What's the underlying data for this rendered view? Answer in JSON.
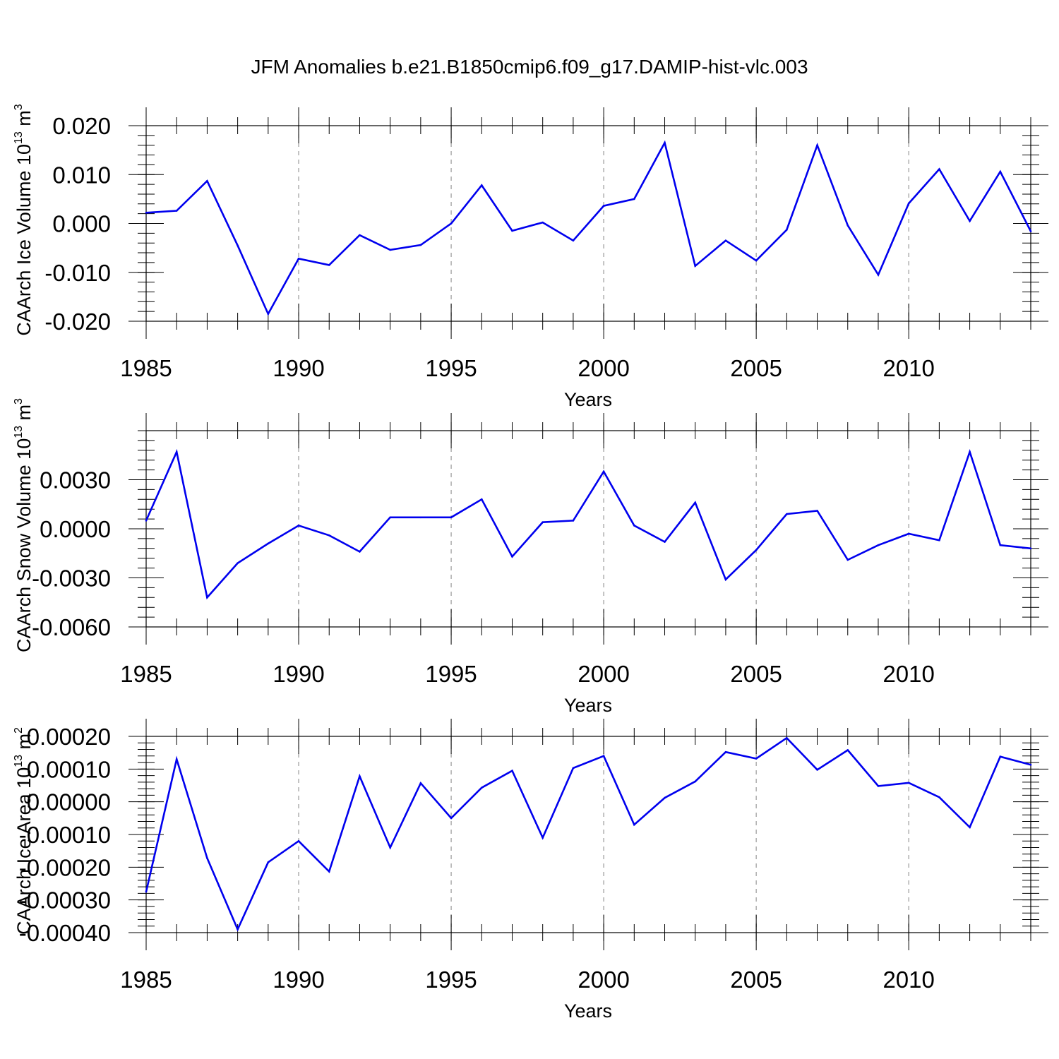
{
  "title": "JFM Anomalies b.e21.B1850cmip6.f09_g17.DAMIP-hist-vlc.003",
  "colors": {
    "series": "#0000ee",
    "grid": "#999999",
    "axis": "#000000"
  },
  "chart_data": [
    {
      "type": "line",
      "xlabel": "Years",
      "ylabel_base": "CAArch Ice Volume 10",
      "ylabel_exp": "13",
      "ylabel_unit": " m",
      "ylabel_unit_exp": "3",
      "xlim": [
        1985,
        2014
      ],
      "ylim": [
        -0.02,
        0.02
      ],
      "xticks": [
        1985,
        1990,
        1995,
        2000,
        2005,
        2010
      ],
      "xtick_labels": [
        "1985",
        "1990",
        "1995",
        "2000",
        "2005",
        "2010"
      ],
      "yticks": [
        -0.02,
        -0.01,
        0.0,
        0.01,
        0.02
      ],
      "ytick_labels": [
        "-0.020",
        "-0.010",
        "0.000",
        "0.010",
        "0.020"
      ],
      "x_minor_step": 1,
      "y_minor_step": 0.002,
      "grid_x": [
        1990,
        1995,
        2000,
        2005,
        2010
      ],
      "series": [
        {
          "name": "CAArch Ice Volume",
          "x": [
            1985,
            1986,
            1987,
            1988,
            1989,
            1990,
            1991,
            1992,
            1993,
            1994,
            1995,
            1996,
            1997,
            1998,
            1999,
            2000,
            2001,
            2002,
            2003,
            2004,
            2005,
            2006,
            2007,
            2008,
            2009,
            2010,
            2011,
            2012,
            2013,
            2014
          ],
          "values": [
            0.0022,
            0.0026,
            0.0087,
            -0.0045,
            -0.0185,
            -0.0072,
            -0.0085,
            -0.0024,
            -0.0054,
            -0.0044,
            0.0,
            0.0078,
            -0.0015,
            0.0002,
            -0.0035,
            0.0036,
            0.005,
            0.0165,
            -0.0087,
            -0.0035,
            -0.0076,
            -0.0013,
            0.016,
            -0.0004,
            -0.0105,
            0.0041,
            0.0111,
            0.0005,
            0.0106,
            -0.0016
          ]
        }
      ]
    },
    {
      "type": "line",
      "xlabel": "Years",
      "ylabel_base": "CAArch Snow Volume 10",
      "ylabel_exp": "13",
      "ylabel_unit": " m",
      "ylabel_unit_exp": "3",
      "xlim": [
        1985,
        2014
      ],
      "ylim": [
        -0.006,
        0.006
      ],
      "xticks": [
        1985,
        1990,
        1995,
        2000,
        2005,
        2010
      ],
      "xtick_labels": [
        "1985",
        "1990",
        "1995",
        "2000",
        "2005",
        "2010"
      ],
      "yticks": [
        -0.006,
        -0.003,
        0.0,
        0.003
      ],
      "ytick_labels": [
        "-0.0060",
        "-0.0030",
        "0.0000",
        "0.0030"
      ],
      "x_minor_step": 1,
      "y_minor_step": 0.0006,
      "grid_x": [
        1990,
        1995,
        2000,
        2005,
        2010
      ],
      "series": [
        {
          "name": "CAArch Snow Volume",
          "x": [
            1985,
            1986,
            1987,
            1988,
            1989,
            1990,
            1991,
            1992,
            1993,
            1994,
            1995,
            1996,
            1997,
            1998,
            1999,
            2000,
            2001,
            2002,
            2003,
            2004,
            2005,
            2006,
            2007,
            2008,
            2009,
            2010,
            2011,
            2012,
            2013,
            2014
          ],
          "values": [
            0.0005,
            0.0047,
            -0.0042,
            -0.0021,
            -0.0009,
            0.0002,
            -0.0004,
            -0.0014,
            0.0007,
            0.0007,
            0.0007,
            0.0018,
            -0.0017,
            0.0004,
            0.0005,
            0.0035,
            0.0002,
            -0.0008,
            0.0016,
            -0.0031,
            -0.0013,
            0.0009,
            0.0011,
            -0.0019,
            -0.001,
            -0.0003,
            -0.0007,
            0.0047,
            -0.001,
            -0.0012
          ]
        }
      ]
    },
    {
      "type": "line",
      "xlabel": "Years",
      "ylabel_base": "CAArch Ice Area 10",
      "ylabel_exp": "13",
      "ylabel_unit": " m",
      "ylabel_unit_exp": "2",
      "xlim": [
        1985,
        2014
      ],
      "ylim": [
        -0.0004,
        0.0002
      ],
      "xticks": [
        1985,
        1990,
        1995,
        2000,
        2005,
        2010
      ],
      "xtick_labels": [
        "1985",
        "1990",
        "1995",
        "2000",
        "2005",
        "2010"
      ],
      "yticks": [
        -0.0004,
        -0.0003,
        -0.0002,
        -0.0001,
        0.0,
        0.0001,
        0.0002
      ],
      "ytick_labels": [
        "-0.00040",
        "-0.00030",
        "-0.00020",
        "-0.00010",
        "0.00000",
        "0.00010",
        "0.00020"
      ],
      "x_minor_step": 1,
      "y_minor_step": 2e-05,
      "grid_x": [
        1990,
        1995,
        2000,
        2005,
        2010
      ],
      "series": [
        {
          "name": "CAArch Ice Area",
          "x": [
            1985,
            1986,
            1987,
            1988,
            1989,
            1990,
            1991,
            1992,
            1993,
            1994,
            1995,
            1996,
            1997,
            1998,
            1999,
            2000,
            2001,
            2002,
            2003,
            2004,
            2005,
            2006,
            2007,
            2008,
            2009,
            2010,
            2011,
            2012,
            2013,
            2014
          ],
          "values": [
            -0.000275,
            0.00013,
            -0.000172,
            -0.00039,
            -0.000185,
            -0.00012,
            -0.000213,
            7.8e-05,
            -0.00014,
            5.7e-05,
            -5e-05,
            4.3e-05,
            9.5e-05,
            -0.00011,
            0.000103,
            0.00014,
            -7e-05,
            1.2e-05,
            6.2e-05,
            0.000152,
            0.000132,
            0.000195,
            9.8e-05,
            0.000158,
            4.8e-05,
            5.8e-05,
            1.4e-05,
            -7.8e-05,
            0.000138,
            0.000113
          ]
        }
      ]
    }
  ]
}
